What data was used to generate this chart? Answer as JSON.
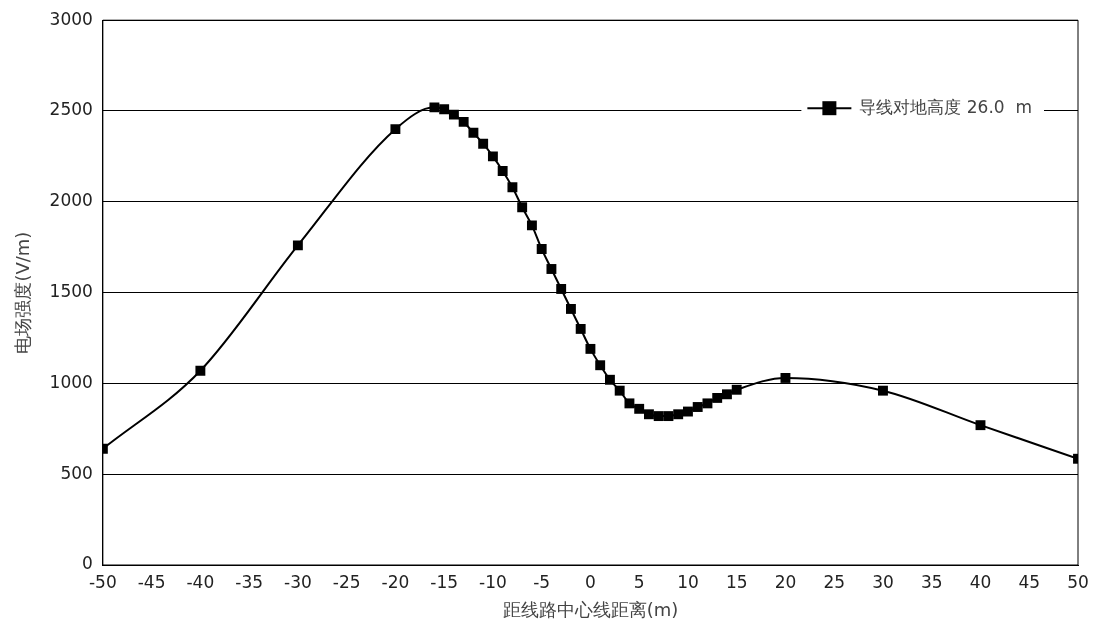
{
  "chart_data": {
    "type": "line",
    "xlabel": "距线路中心线距离(m)",
    "ylabel": "电场强度(V/m)",
    "x": [
      -50,
      -40,
      -30,
      -20,
      -16,
      -15,
      -14,
      -13,
      -12,
      -11,
      -10,
      -9,
      -8,
      -7,
      -6,
      -5,
      -4,
      -3,
      -2,
      -1,
      0,
      1,
      2,
      3,
      4,
      5,
      6,
      7,
      8,
      9,
      10,
      11,
      12,
      13,
      14,
      15,
      20,
      30,
      40,
      50
    ],
    "series": [
      {
        "name": "导线对地高度 26.0  m",
        "color": "#000000",
        "values": [
          640,
          1070,
          1760,
          2400,
          2520,
          2510,
          2480,
          2440,
          2380,
          2320,
          2250,
          2170,
          2080,
          1970,
          1870,
          1740,
          1630,
          1520,
          1410,
          1300,
          1190,
          1100,
          1020,
          960,
          890,
          860,
          830,
          820,
          820,
          830,
          845,
          870,
          890,
          920,
          940,
          965,
          1030,
          960,
          770,
          585
        ]
      }
    ],
    "xlim": [
      -50,
      50
    ],
    "xticks": [
      -50,
      -45,
      -40,
      -35,
      -30,
      -25,
      -20,
      -15,
      -10,
      -5,
      0,
      5,
      10,
      15,
      20,
      25,
      30,
      35,
      40,
      45,
      50
    ],
    "ylim": [
      0,
      3000
    ],
    "yticks": [
      0,
      500,
      1000,
      1500,
      2000,
      2500,
      3000
    ],
    "grid": "y",
    "legend": "top right",
    "marker": "square",
    "line_style": "solid"
  }
}
